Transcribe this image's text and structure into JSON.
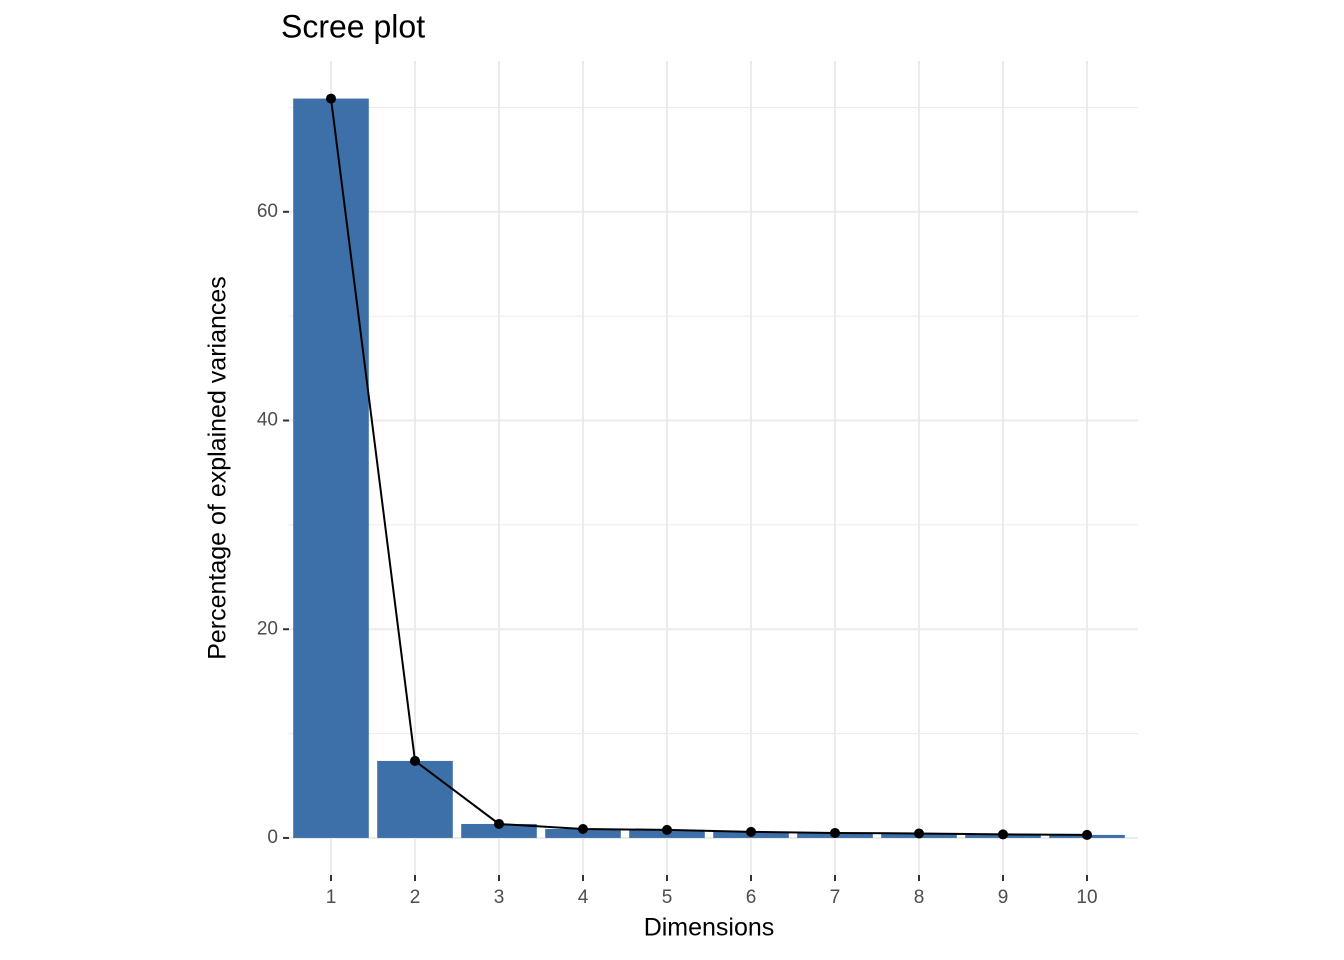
{
  "chart_data": {
    "type": "bar",
    "title": "Scree plot",
    "x_label": "Dimensions",
    "y_label": "Percentage of explained variances",
    "categories": [
      "1",
      "2",
      "3",
      "4",
      "5",
      "6",
      "7",
      "8",
      "9",
      "10"
    ],
    "values": [
      70.85,
      7.38,
      1.34,
      0.86,
      0.77,
      0.58,
      0.48,
      0.43,
      0.34,
      0.29
    ],
    "color": "#3d6fa8",
    "line_color": "#000000",
    "ylim": [
      -3.55,
      74.45
    ],
    "yticks": [
      0,
      20,
      40,
      60
    ],
    "yminor": [
      10,
      30,
      50,
      70
    ],
    "grid": true
  }
}
